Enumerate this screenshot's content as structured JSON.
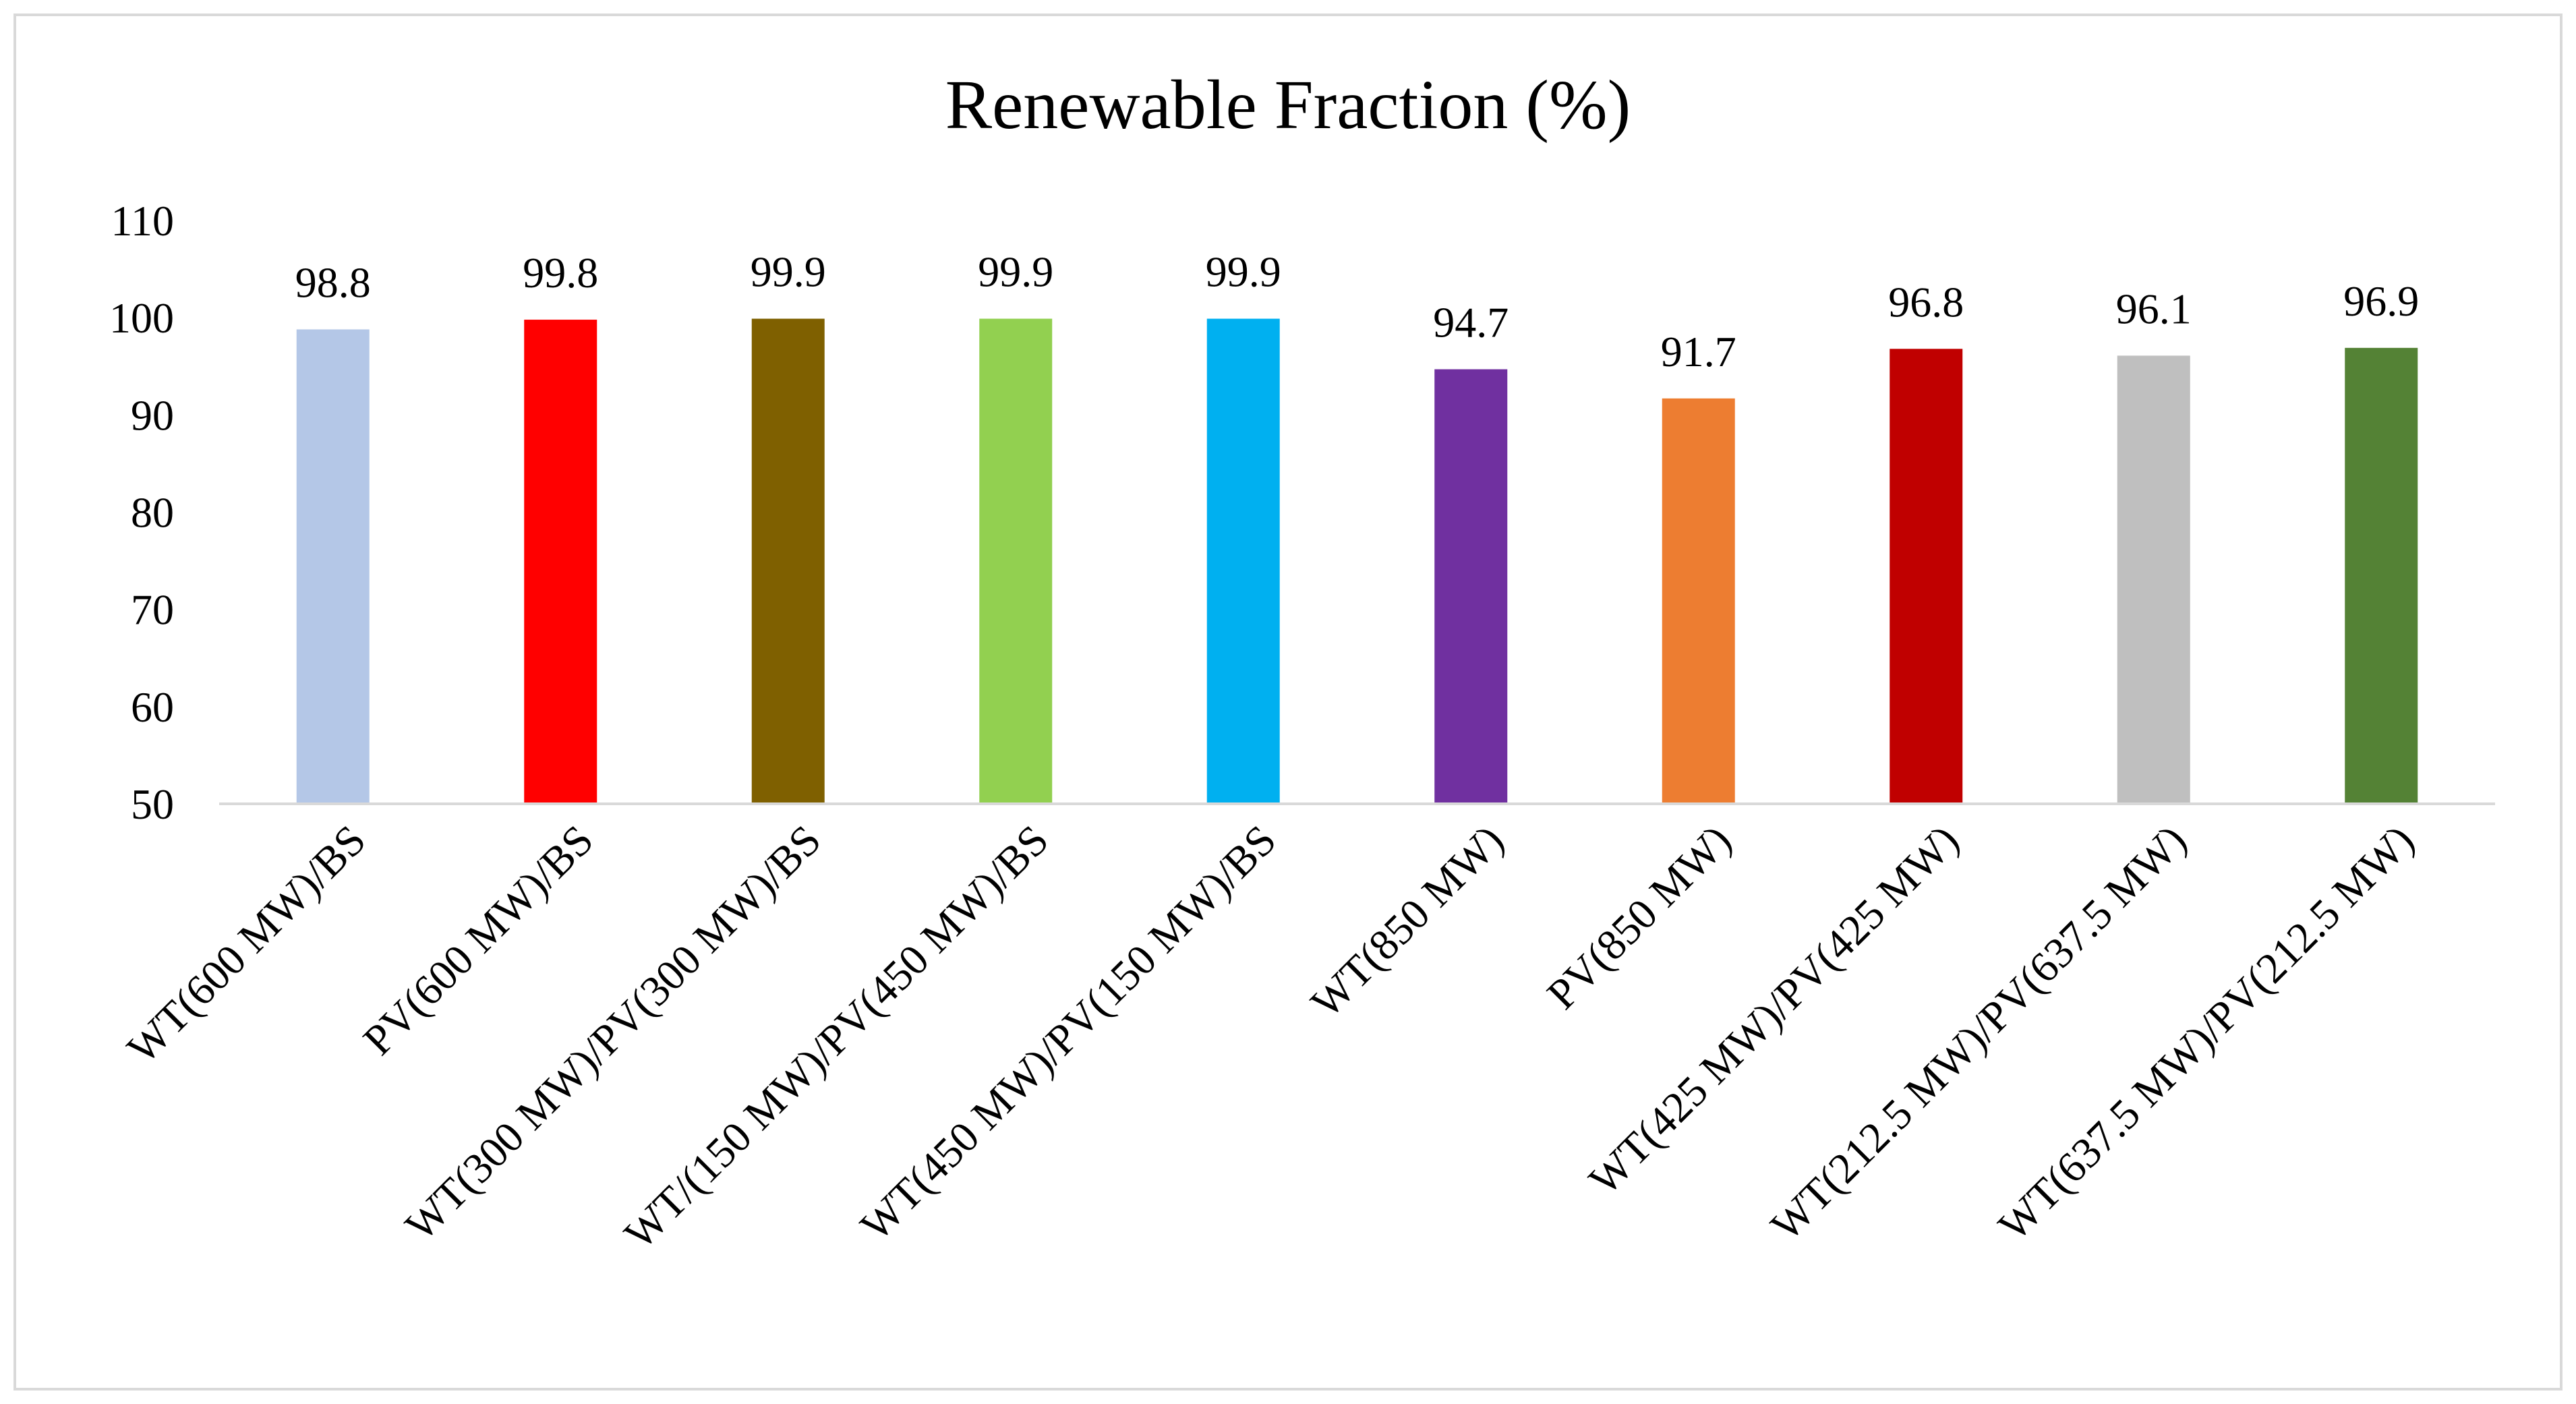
{
  "chart_data": {
    "type": "bar",
    "title": "Renewable Fraction (%)",
    "xlabel": "",
    "ylabel": "",
    "ylim": [
      50,
      110
    ],
    "yticks": [
      50,
      60,
      70,
      80,
      90,
      100,
      110
    ],
    "grid": false,
    "legend": "none",
    "categories": [
      "WT(600 MW)/BS",
      "PV(600 MW)/BS",
      "WT(300 MW)/PV(300 MW)/BS",
      "WT/(150 MW)/PV(450 MW)/BS",
      "WT(450 MW)/PV(150 MW)/BS",
      "WT(850 MW)",
      "PV(850 MW)",
      "WT(425 MW)/PV(425 MW)",
      "WT(212.5 MW)/PV(637.5 MW)",
      "WT(637.5 MW)/PV(212.5 MW)"
    ],
    "values": [
      98.8,
      99.8,
      99.9,
      99.9,
      99.9,
      94.7,
      91.7,
      96.8,
      96.1,
      96.9
    ],
    "value_labels": [
      "98.8",
      "99.8",
      "99.9",
      "99.9",
      "99.9",
      "94.7",
      "91.7",
      "96.8",
      "96.1",
      "96.9"
    ],
    "colors": [
      "#b4c7e7",
      "#ff0000",
      "#7f6000",
      "#92d050",
      "#00b0f0",
      "#7030a0",
      "#ed7d31",
      "#c00000",
      "#bfbfbf",
      "#548235"
    ]
  },
  "style": {
    "axis_color": "#d9d9d9",
    "text_color": "#000000",
    "frame_color": "#d9d9d9"
  }
}
